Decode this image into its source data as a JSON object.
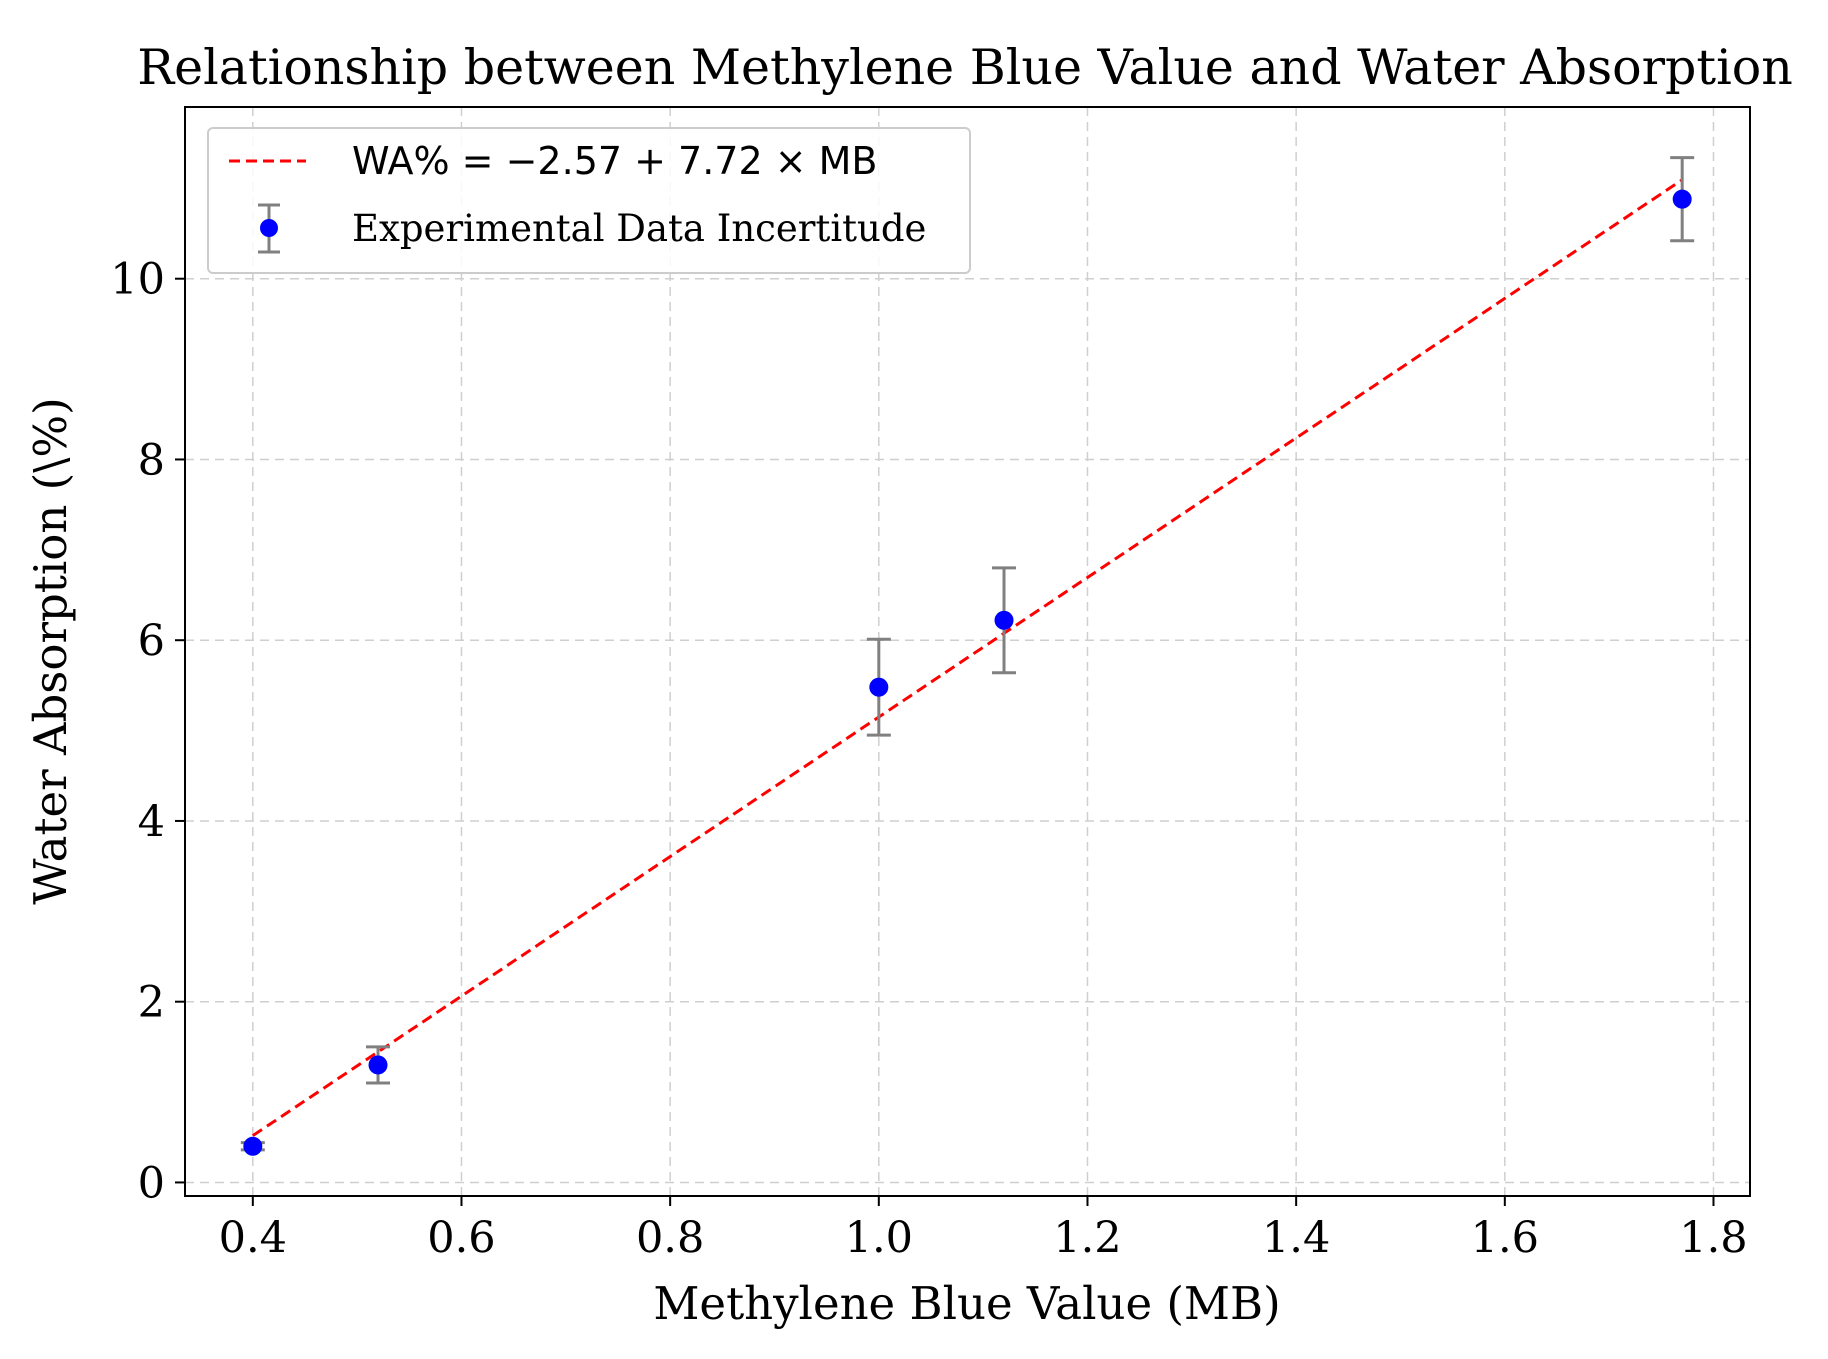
{
  "chart_data": {
    "type": "scatter",
    "title": "Relationship between Methylene Blue Value and Water Absorption",
    "xlabel": "Methylene Blue Value (MB)",
    "ylabel": "Water Absorption (\\%)",
    "xlim": [
      0.335,
      1.835
    ],
    "ylim": [
      -0.15,
      11.9
    ],
    "xticks": [
      0.4,
      0.6,
      0.8,
      1.0,
      1.2,
      1.4,
      1.6,
      1.8
    ],
    "xtick_labels": [
      "0.4",
      "0.6",
      "0.8",
      "1.0",
      "1.2",
      "1.4",
      "1.6",
      "1.8"
    ],
    "yticks": [
      0,
      2,
      4,
      6,
      8,
      10
    ],
    "ytick_labels": [
      "0",
      "2",
      "4",
      "6",
      "8",
      "10"
    ],
    "grid": true,
    "legend_position": "top-left",
    "series": [
      {
        "name": "Experimental Data Incertitude",
        "kind": "errorbar",
        "color": "#0000ff",
        "errorbar_color": "#808080",
        "x": [
          0.4,
          0.52,
          1.0,
          1.12,
          1.77
        ],
        "y": [
          0.4,
          1.3,
          5.48,
          6.22,
          10.88
        ],
        "yerr": [
          0.04,
          0.2,
          0.53,
          0.58,
          0.46
        ]
      },
      {
        "name": "WA% = −2.57 + 7.72 × MB",
        "kind": "fit-line",
        "color": "#ff0000",
        "line_style": "dashed",
        "intercept": -2.57,
        "slope": 7.72,
        "x_range": [
          0.4,
          1.77
        ]
      }
    ]
  }
}
